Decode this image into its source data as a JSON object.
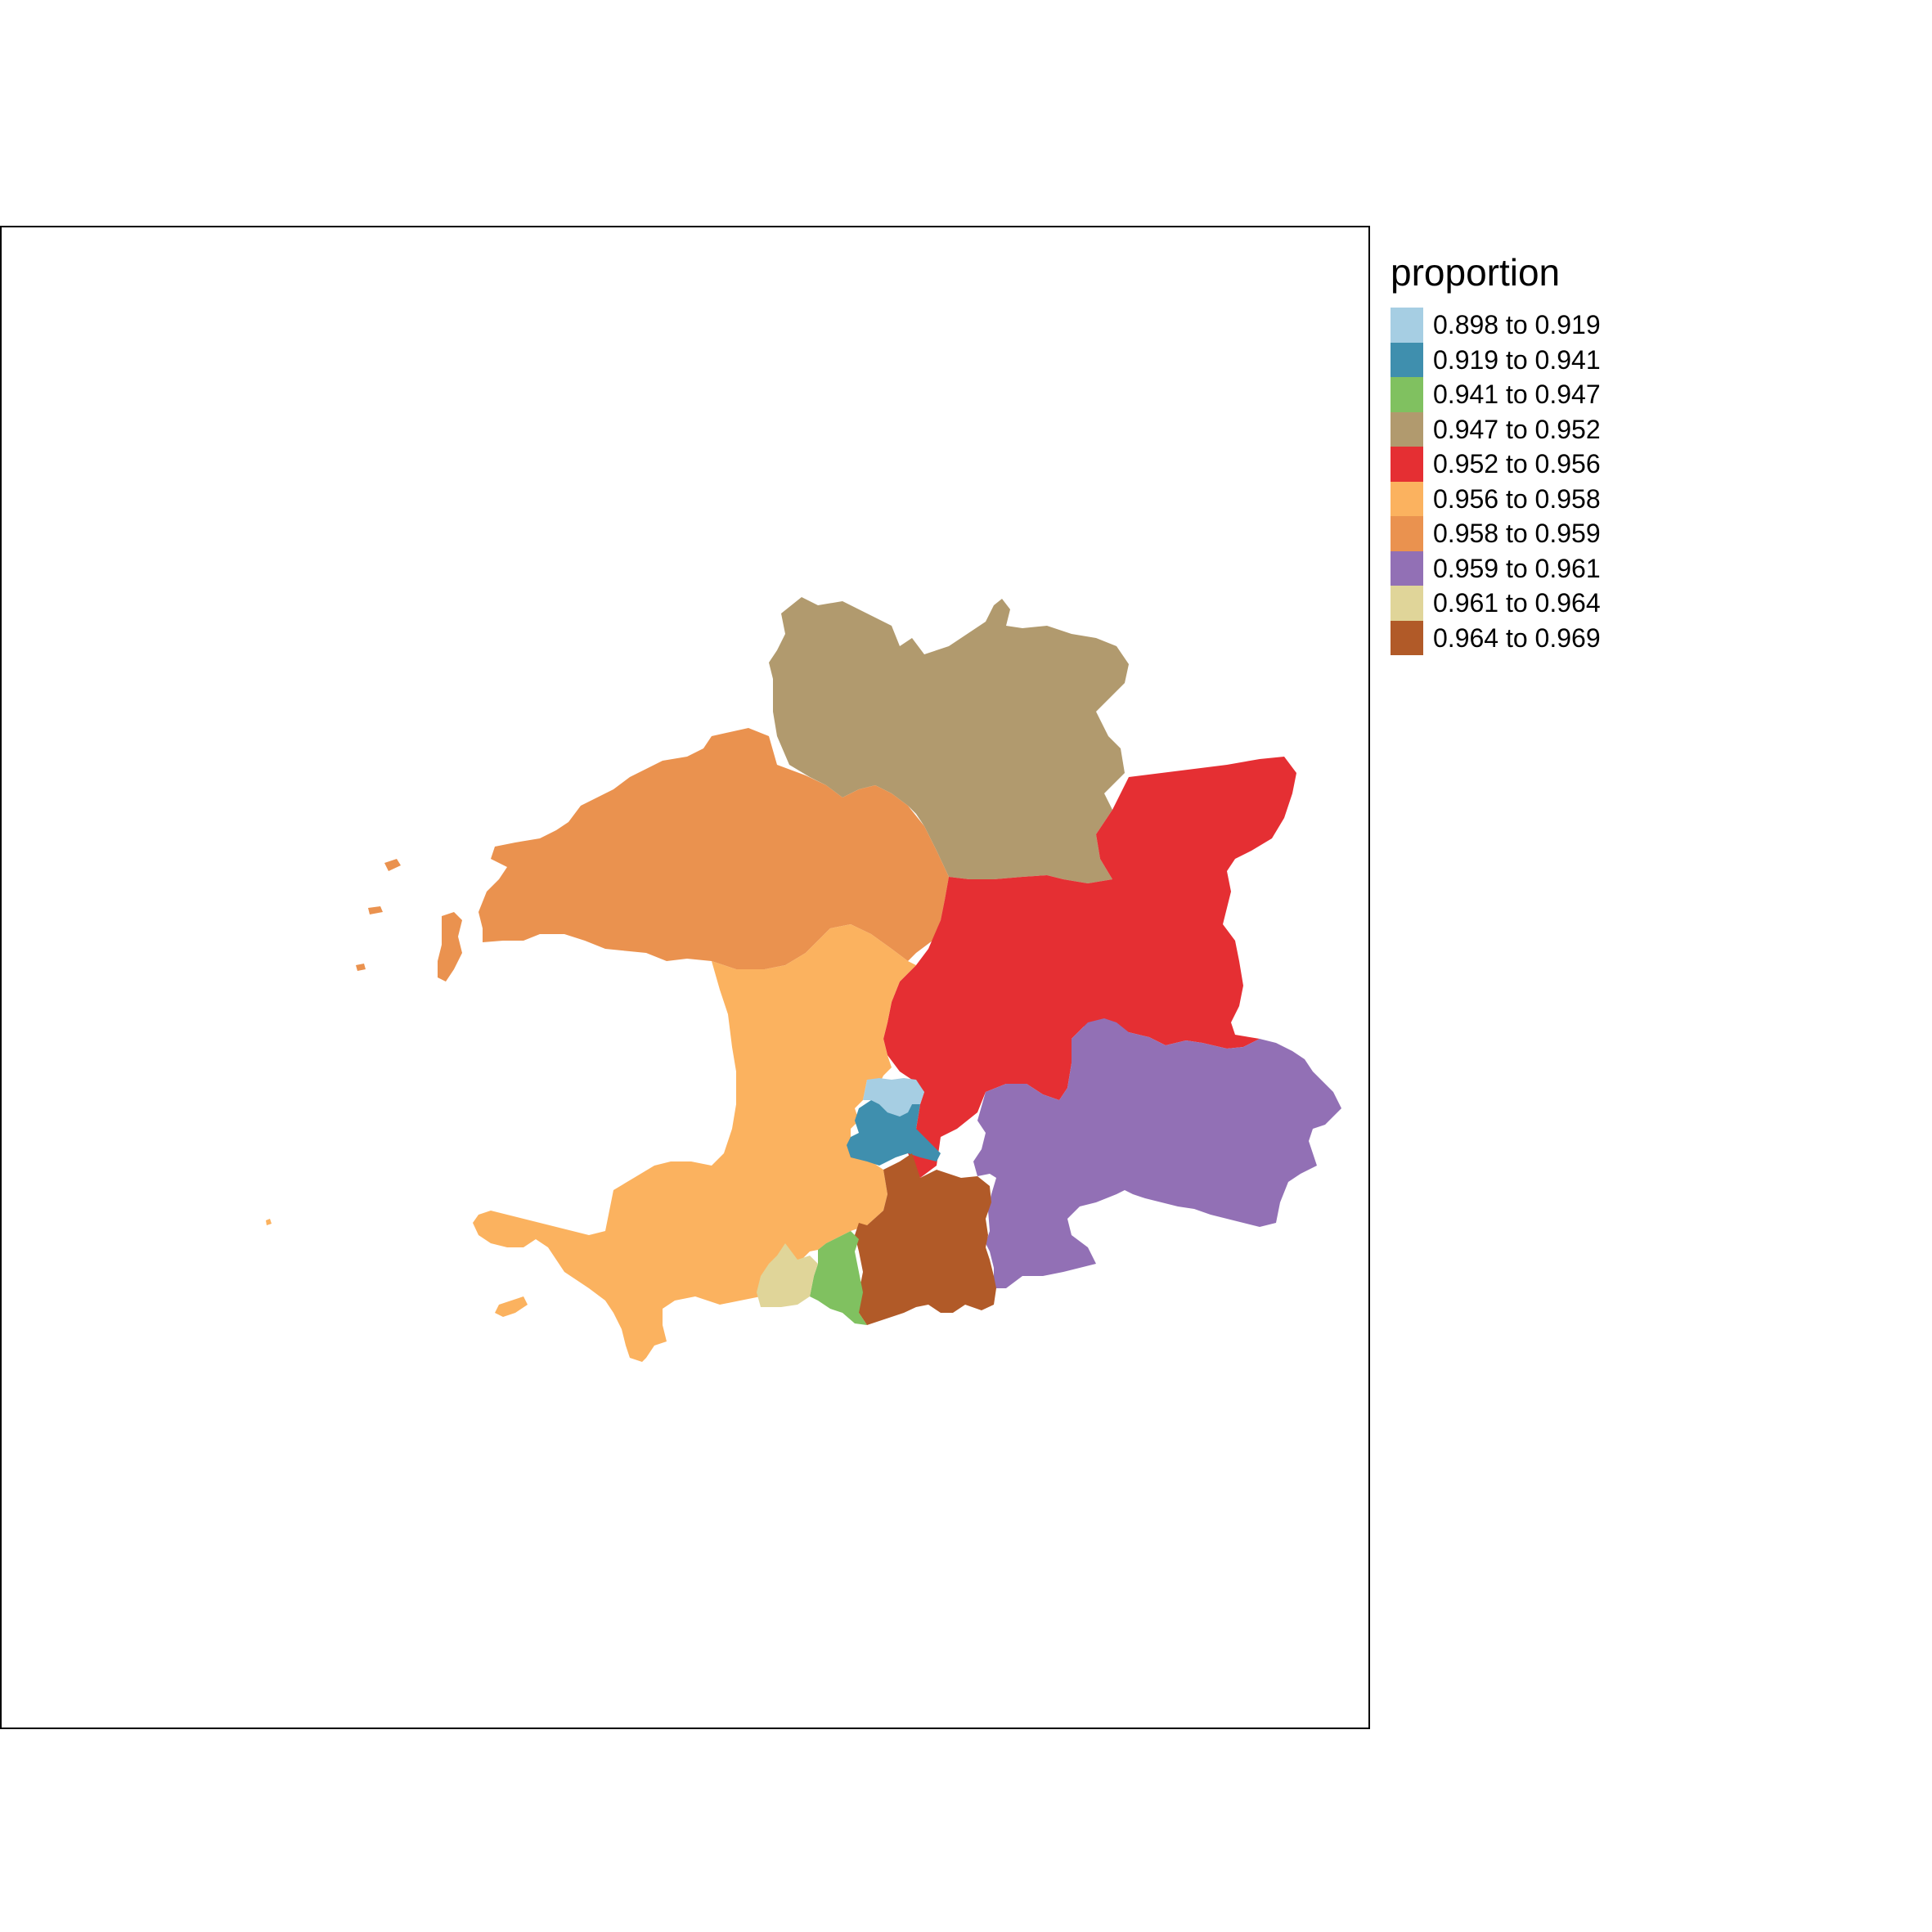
{
  "legend": {
    "title": "proportion",
    "classes": [
      {
        "label": "0.898 to 0.919",
        "color": "#a6cee3"
      },
      {
        "label": "0.919 to 0.941",
        "color": "#3f8fae"
      },
      {
        "label": "0.941 to 0.947",
        "color": "#80c160"
      },
      {
        "label": "0.947 to 0.952",
        "color": "#b19a6e"
      },
      {
        "label": "0.952 to 0.956",
        "color": "#e52f33"
      },
      {
        "label": "0.956 to 0.958",
        "color": "#fbb25f"
      },
      {
        "label": "0.958 to 0.959",
        "color": "#ea924f"
      },
      {
        "label": "0.959 to 0.961",
        "color": "#9270b5"
      },
      {
        "label": "0.961 to 0.964",
        "color": "#e0d599"
      },
      {
        "label": "0.964 to 0.969",
        "color": "#b15a28"
      }
    ]
  },
  "regions": [
    {
      "name": "north-region",
      "class_index": 3
    },
    {
      "name": "northwest-region",
      "class_index": 6
    },
    {
      "name": "east-central-region",
      "class_index": 4
    },
    {
      "name": "west-region",
      "class_index": 5
    },
    {
      "name": "east-region",
      "class_index": 7
    },
    {
      "name": "central-small-north-region",
      "class_index": 0
    },
    {
      "name": "central-small-region",
      "class_index": 1
    },
    {
      "name": "south-central-region",
      "class_index": 9
    },
    {
      "name": "south-small-region",
      "class_index": 2
    },
    {
      "name": "south-west-small-region",
      "class_index": 8
    }
  ]
}
